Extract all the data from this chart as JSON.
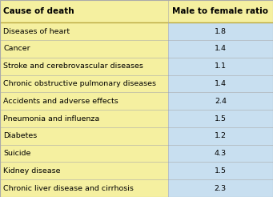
{
  "col1_header": "Cause of death",
  "col2_header": "Male to female ratio",
  "rows": [
    [
      "Diseases of heart",
      "1.8"
    ],
    [
      "Cancer",
      "1.4"
    ],
    [
      "Stroke and cerebrovascular diseases",
      "1.1"
    ],
    [
      "Chronic obstructive pulmonary diseases",
      "1.4"
    ],
    [
      "Accidents and adverse effects",
      "2.4"
    ],
    [
      "Pneumonia and influenza",
      "1.5"
    ],
    [
      "Diabetes",
      "1.2"
    ],
    [
      "Suicide",
      "4.3"
    ],
    [
      "Kidney disease",
      "1.5"
    ],
    [
      "Chronic liver disease and cirrhosis",
      "2.3"
    ]
  ],
  "col1_bg": "#F5F0A0",
  "col2_bg": "#C8DFF0",
  "header_bg": "#F5F0A0",
  "header2_bg": "#F5F0A0",
  "border_color": "#AAAAAA",
  "divider_color": "#BBAA44",
  "text_color": "#000000",
  "header_fontsize": 7.5,
  "cell_fontsize": 6.8,
  "col_split": 0.615,
  "figsize": [
    3.41,
    2.46
  ],
  "dpi": 100
}
